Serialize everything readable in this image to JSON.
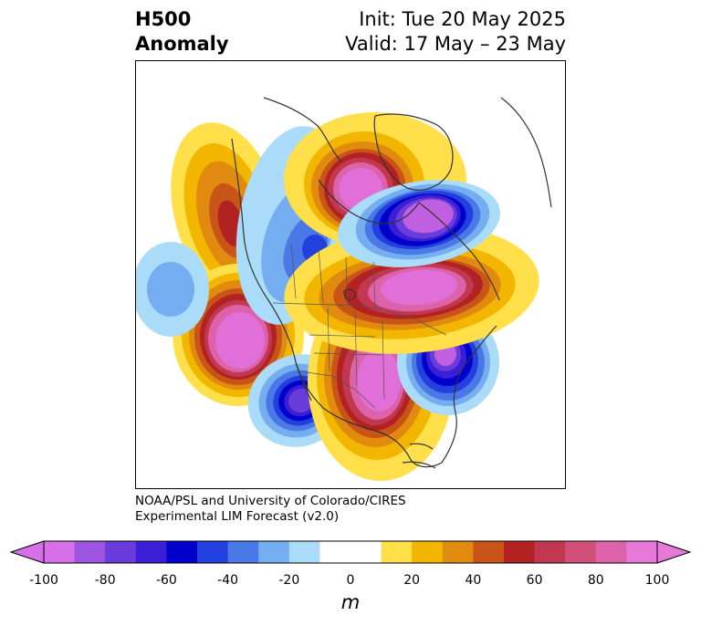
{
  "title": {
    "left_line1": "H500",
    "left_line2": "Anomaly",
    "right_line1": "Init: Tue 20 May 2025",
    "right_line2": "Valid: 17 May – 23 May"
  },
  "credit": {
    "line1": "NOAA/PSL and University of Colorado/CIRES",
    "line2": "Experimental LIM Forecast (v2.0)"
  },
  "colorbar": {
    "unit": "m",
    "ticks": [
      "-100",
      "-80",
      "-60",
      "-40",
      "-20",
      "0",
      "20",
      "40",
      "60",
      "80",
      "100"
    ],
    "colors": [
      "#d66fe8",
      "#9b55e0",
      "#6a3cdb",
      "#3a1fd4",
      "#0000cc",
      "#2240dd",
      "#4a78e6",
      "#74aef0",
      "#aadcfa",
      "#ffffff",
      "#ffffff",
      "#ffe04a",
      "#f2b600",
      "#e08a10",
      "#c85418",
      "#b22222",
      "#c23850",
      "#d0507a",
      "#dc62aa",
      "#e678d8"
    ]
  },
  "colors": {
    "low_core": "#c060e0",
    "high_core": "#e070d8",
    "coastline": "#333333"
  }
}
